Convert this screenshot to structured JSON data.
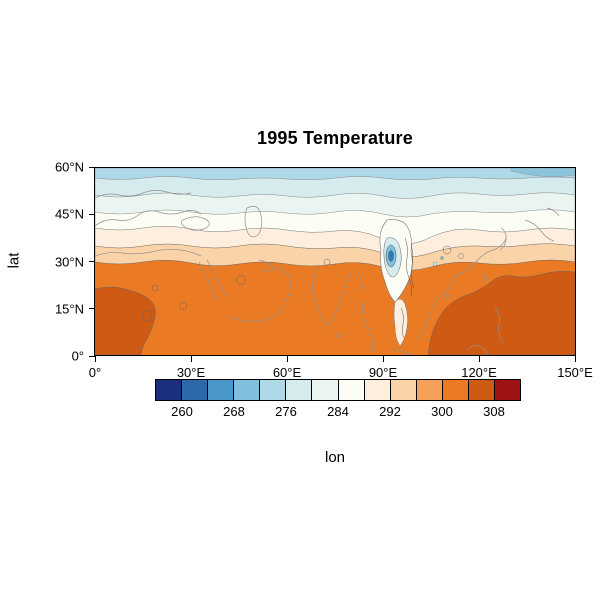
{
  "figure": {
    "background_color": "#ffffff",
    "frame_color": "#000000"
  },
  "chart_data": {
    "type": "heatmap",
    "subtype": "filled_contour_map_with_coastlines",
    "title": "1995 Temperature",
    "xlabel": "lon",
    "ylabel": "lat",
    "xlim": [
      0,
      150
    ],
    "ylim": [
      0,
      60
    ],
    "grid": false,
    "legend_position": "bottom-horizontal-colorbar",
    "x_ticks": [
      {
        "value": 0,
        "label": "0°"
      },
      {
        "value": 30,
        "label": "30°E"
      },
      {
        "value": 60,
        "label": "60°E"
      },
      {
        "value": 90,
        "label": "90°E"
      },
      {
        "value": 120,
        "label": "120°E"
      },
      {
        "value": 150,
        "label": "150°E"
      }
    ],
    "y_ticks": [
      {
        "value": 0,
        "label": "0°"
      },
      {
        "value": 15,
        "label": "15°N"
      },
      {
        "value": 30,
        "label": "30°N"
      },
      {
        "value": 45,
        "label": "45°N"
      },
      {
        "value": 60,
        "label": "60°N"
      }
    ],
    "colorbar": {
      "tick_labels": [
        "260",
        "268",
        "276",
        "284",
        "292",
        "300",
        "308"
      ],
      "level_step": 4,
      "levels": [
        256,
        260,
        264,
        268,
        272,
        276,
        280,
        284,
        288,
        292,
        296,
        300,
        304,
        308,
        312
      ],
      "colors": [
        "#1a2f7e",
        "#2c69a9",
        "#4a97c9",
        "#7fc0dc",
        "#b0d9e7",
        "#d5ebee",
        "#eaf5f2",
        "#fcfdf5",
        "#fdeedd",
        "#fbd3a9",
        "#f5a159",
        "#ea7b24",
        "#cf5a14",
        "#9e1214"
      ]
    },
    "approx_zonal_profile": [
      {
        "lat": 0,
        "temp": 302
      },
      {
        "lat": 10,
        "temp": 302
      },
      {
        "lat": 20,
        "temp": 300
      },
      {
        "lat": 28,
        "temp": 298
      },
      {
        "lat": 32,
        "temp": 294
      },
      {
        "lat": 36,
        "temp": 290
      },
      {
        "lat": 40,
        "temp": 286
      },
      {
        "lat": 45,
        "temp": 284
      },
      {
        "lat": 50,
        "temp": 281
      },
      {
        "lat": 55,
        "temp": 278
      },
      {
        "lat": 60,
        "temp": 276
      }
    ],
    "notable_features": [
      "warmest region ~304-308 over 0-50°E, 0-20°N (Africa/Arabia) and ~95-150°E near equator",
      "cold anomaly ~264-280 centered near 88-95°E, 25-35°N (Tibetan Plateau) with tight contour lines",
      "cool tongue of ~284-288 extends south along ~95°E to ~10°N",
      "temperature decreases northward in zonal bands reaching ~272-276 at 60°N",
      "thin gray coastline outlines drawn over the filled contours"
    ]
  }
}
